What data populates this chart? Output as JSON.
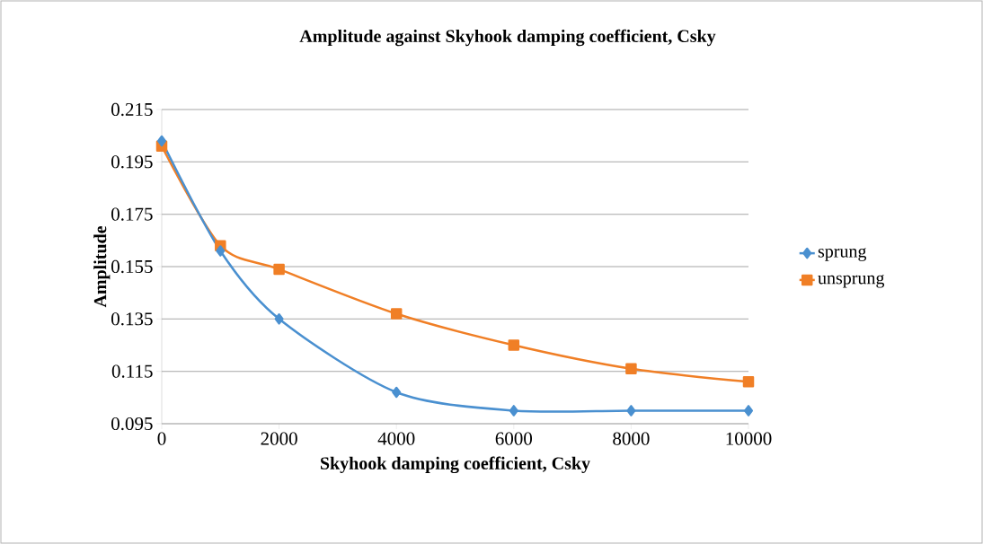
{
  "chart_data": {
    "type": "line",
    "title": "Amplitude against Skyhook damping coefficient, Csky",
    "xlabel": "Skyhook damping coefficient, Csky",
    "ylabel": "Amplitude",
    "x": [
      0,
      1000,
      2000,
      4000,
      6000,
      8000,
      10000
    ],
    "series": [
      {
        "name": "sprung",
        "color": "#4a90d0",
        "marker": "diamond",
        "values": [
          0.203,
          0.161,
          0.135,
          0.107,
          0.1,
          0.1,
          0.1
        ]
      },
      {
        "name": "unsprung",
        "color": "#f07f26",
        "marker": "square",
        "values": [
          0.201,
          0.163,
          0.154,
          0.137,
          0.125,
          0.116,
          0.111
        ]
      }
    ],
    "xlim": [
      0,
      10000
    ],
    "xticks": [
      0,
      2000,
      4000,
      6000,
      8000,
      10000
    ],
    "ylim": [
      0.095,
      0.215
    ],
    "yticks": [
      0.095,
      0.115,
      0.135,
      0.155,
      0.175,
      0.195,
      0.215
    ],
    "grid": "y",
    "legend": "right",
    "line_style": "solid"
  }
}
